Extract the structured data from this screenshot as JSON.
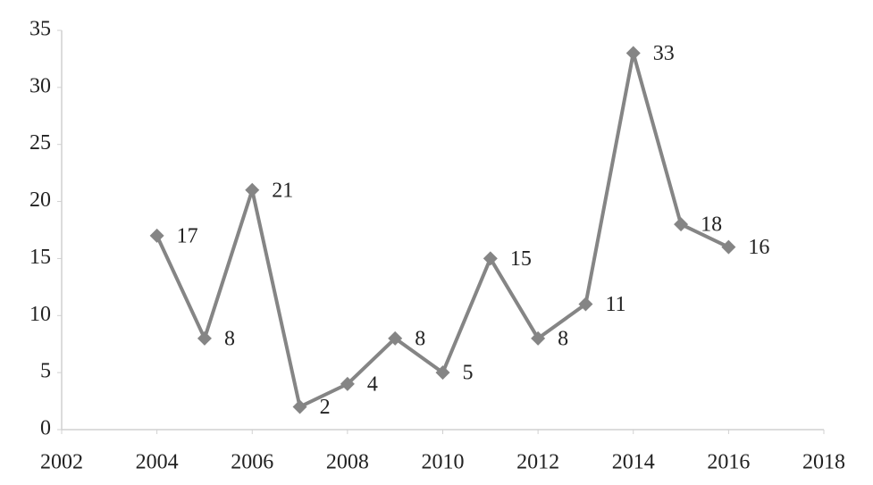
{
  "chart_data": {
    "type": "line",
    "x": [
      2004,
      2005,
      2006,
      2007,
      2008,
      2009,
      2010,
      2011,
      2012,
      2013,
      2014,
      2015,
      2016
    ],
    "values": [
      17,
      8,
      21,
      2,
      4,
      8,
      5,
      15,
      8,
      11,
      33,
      18,
      16
    ],
    "color": "#858585",
    "xlim": [
      2002,
      2018
    ],
    "xticks": [
      2002,
      2004,
      2006,
      2008,
      2010,
      2012,
      2014,
      2016,
      2018
    ],
    "ylim": [
      0,
      35
    ],
    "yticks": [
      0,
      5,
      10,
      15,
      20,
      25,
      30,
      35
    ],
    "data_labels": true
  }
}
